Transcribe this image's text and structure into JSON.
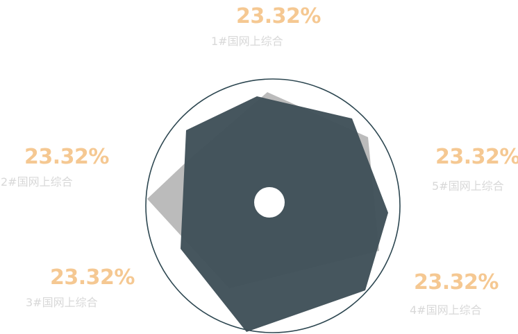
{
  "chart_data": {
    "type": "radar",
    "title": "",
    "categories": [
      "1#国网上综合",
      "5#国网上综合",
      "4#国网上综合",
      "3#国网上综合",
      "2#国网上综合"
    ],
    "labels": [
      {
        "name": "1#国网上综合",
        "value": "23.32%"
      },
      {
        "name": "2#国网上综合",
        "value": "23.32%"
      },
      {
        "name": "3#国网上综合",
        "value": "23.32%"
      },
      {
        "name": "4#国网上综合",
        "value": "23.32%"
      },
      {
        "name": "5#国网上综合",
        "value": "23.32%"
      }
    ],
    "colors": {
      "front_shape": "#3e4f57",
      "back_shape": "#9e9e9e",
      "ring": "#2c4650",
      "value_text": "#f5c892",
      "name_text": "#d8d8d8"
    }
  }
}
